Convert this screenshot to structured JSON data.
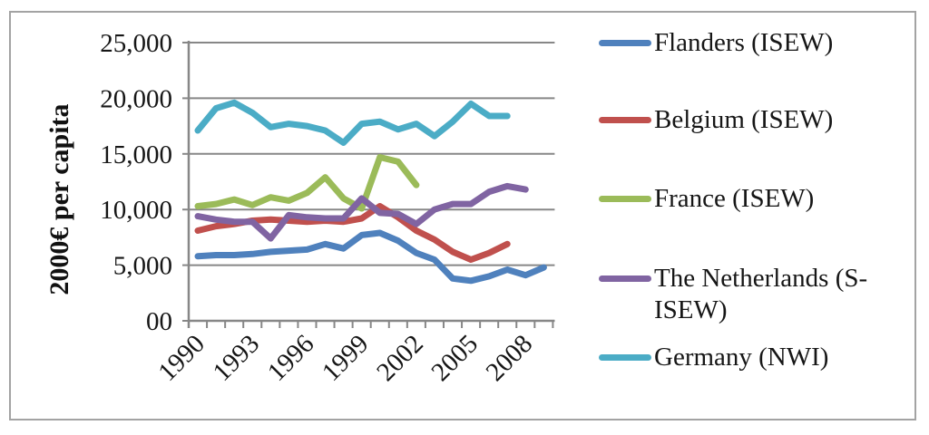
{
  "figure": {
    "background": "#ffffff",
    "border_color": "#a3a3a3",
    "axis_color": "#878787",
    "text_color": "#161616"
  },
  "chart_data": {
    "type": "line",
    "title": "",
    "xlabel": "",
    "ylabel": "2000€ per capita",
    "ylim": [
      0,
      25000
    ],
    "x_range": [
      1990,
      2009
    ],
    "grid": true,
    "legend_position": "right",
    "y_tick_labels": [
      "00",
      "5,000",
      "10,000",
      "15,000",
      "20,000",
      "25,000"
    ],
    "x_tick_labels": [
      "1990",
      "1993",
      "1996",
      "1999",
      "2002",
      "2005",
      "2008"
    ],
    "series": [
      {
        "name": "Flanders (ISEW)",
        "color": "#4F81BD",
        "start_year": 1990,
        "values": [
          5800,
          5900,
          5900,
          6000,
          6200,
          6300,
          6400,
          6900,
          6500,
          7700,
          7900,
          7200,
          6100,
          5500,
          3800,
          3600,
          4000,
          4600,
          4100,
          4800
        ]
      },
      {
        "name": "Belgium (ISEW)",
        "color": "#C0504D",
        "start_year": 1990,
        "values": [
          8100,
          8500,
          8700,
          9000,
          9100,
          9000,
          8900,
          9000,
          8900,
          9200,
          10300,
          9300,
          8100,
          7300,
          6200,
          5500,
          6100,
          6900
        ]
      },
      {
        "name": "France (ISEW)",
        "color": "#9BBB59",
        "start_year": 1990,
        "values": [
          10300,
          10500,
          10900,
          10400,
          11100,
          10800,
          11500,
          12900,
          11000,
          10100,
          14700,
          14300,
          12200
        ]
      },
      {
        "name": "The Netherlands (S-ISEW)",
        "color": "#8064A2",
        "start_year": 1990,
        "values": [
          9400,
          9100,
          8900,
          8900,
          7400,
          9500,
          9300,
          9200,
          9200,
          11000,
          9700,
          9600,
          8700,
          10000,
          10500,
          10500,
          11600,
          12100,
          11800
        ]
      },
      {
        "name": "Germany (NWI)",
        "color": "#4BACC6",
        "start_year": 1990,
        "values": [
          17100,
          19100,
          19600,
          18700,
          17400,
          17700,
          17500,
          17100,
          16000,
          17700,
          17900,
          17200,
          17700,
          16600,
          17900,
          19500,
          18400,
          18400
        ]
      }
    ]
  }
}
